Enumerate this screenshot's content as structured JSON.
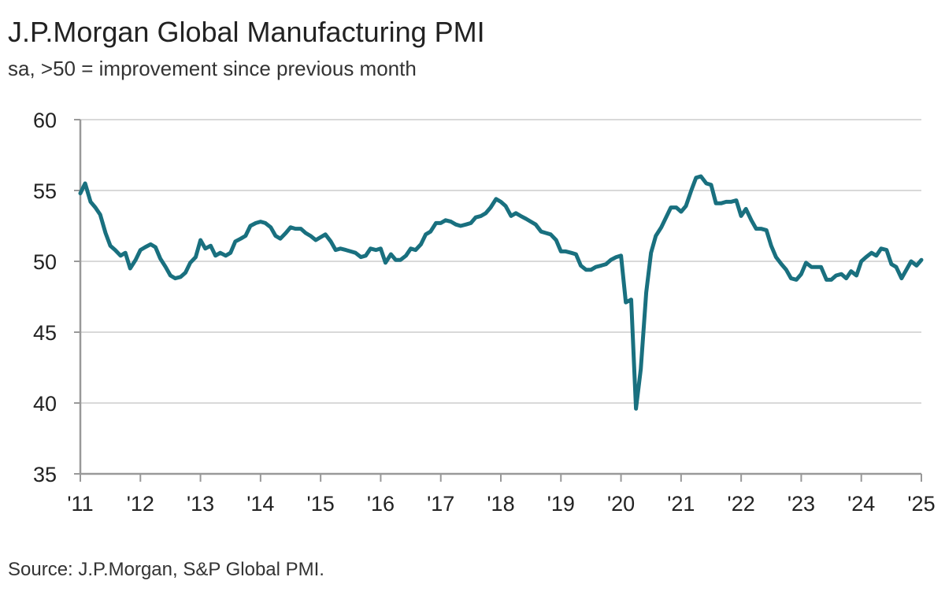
{
  "title": "J.P.Morgan Global Manufacturing PMI",
  "subtitle": "sa, >50 = improvement since previous month",
  "source": "Source: J.P.Morgan, S&P Global PMI.",
  "colors": {
    "line": "#19707f",
    "grid": "#d9d9d9",
    "axis": "#999999"
  },
  "chart_data": {
    "type": "line",
    "title": "J.P.Morgan Global Manufacturing PMI",
    "ylim": [
      35,
      60
    ],
    "y_ticks": [
      "35",
      "40",
      "45",
      "50",
      "55",
      "60"
    ],
    "x_range": [
      2011,
      2025
    ],
    "x_tick_labels": [
      "'11",
      "'12",
      "'13",
      "'14",
      "'15",
      "'16",
      "'17",
      "'18",
      "'19",
      "'20",
      "'21",
      "'22",
      "'23",
      "'24",
      "'25"
    ],
    "grid": "horizontal",
    "series": [
      {
        "x": [
          2011.0,
          2011.08,
          2011.17,
          2011.25,
          2011.33,
          2011.42,
          2011.5,
          2011.58,
          2011.67,
          2011.75,
          2011.83,
          2011.92,
          2012.0,
          2012.08,
          2012.17,
          2012.25,
          2012.33,
          2012.42,
          2012.5,
          2012.58,
          2012.67,
          2012.75,
          2012.83,
          2012.92,
          2013.0,
          2013.08,
          2013.17,
          2013.25,
          2013.33,
          2013.42,
          2013.5,
          2013.58,
          2013.67,
          2013.75,
          2013.83,
          2013.92,
          2014.0,
          2014.08,
          2014.17,
          2014.25,
          2014.33,
          2014.42,
          2014.5,
          2014.58,
          2014.67,
          2014.75,
          2014.83,
          2014.92,
          2015.0,
          2015.08,
          2015.17,
          2015.25,
          2015.33,
          2015.42,
          2015.5,
          2015.58,
          2015.67,
          2015.75,
          2015.83,
          2015.92,
          2016.0,
          2016.08,
          2016.17,
          2016.25,
          2016.33,
          2016.42,
          2016.5,
          2016.58,
          2016.67,
          2016.75,
          2016.83,
          2016.92,
          2017.0,
          2017.08,
          2017.17,
          2017.25,
          2017.33,
          2017.42,
          2017.5,
          2017.58,
          2017.67,
          2017.75,
          2017.83,
          2017.92,
          2018.0,
          2018.08,
          2018.17,
          2018.25,
          2018.33,
          2018.42,
          2018.5,
          2018.58,
          2018.67,
          2018.75,
          2018.83,
          2018.92,
          2019.0,
          2019.08,
          2019.17,
          2019.25,
          2019.33,
          2019.42,
          2019.5,
          2019.58,
          2019.67,
          2019.75,
          2019.83,
          2019.92,
          2020.0,
          2020.08,
          2020.17,
          2020.25,
          2020.33,
          2020.42,
          2020.5,
          2020.58,
          2020.67,
          2020.75,
          2020.83,
          2020.92,
          2021.0,
          2021.08,
          2021.17,
          2021.25,
          2021.33,
          2021.42,
          2021.5,
          2021.58,
          2021.67,
          2021.75,
          2021.83,
          2021.92,
          2022.0,
          2022.08,
          2022.17,
          2022.25,
          2022.33,
          2022.42,
          2022.5,
          2022.58,
          2022.67,
          2022.75,
          2022.83,
          2022.92,
          2023.0,
          2023.08,
          2023.17,
          2023.25,
          2023.33,
          2023.42,
          2023.5,
          2023.58,
          2023.67,
          2023.75,
          2023.83,
          2023.92,
          2024.0,
          2024.08,
          2024.17,
          2024.25,
          2024.33,
          2024.42,
          2024.5,
          2024.58,
          2024.67,
          2024.75,
          2024.83,
          2024.92,
          2025.0
        ],
        "values": [
          54.8,
          55.5,
          54.2,
          53.8,
          53.3,
          52.0,
          51.1,
          50.8,
          50.4,
          50.6,
          49.5,
          50.1,
          50.8,
          51.0,
          51.2,
          51.0,
          50.2,
          49.6,
          49.0,
          48.8,
          48.9,
          49.2,
          49.9,
          50.3,
          51.5,
          50.9,
          51.1,
          50.4,
          50.6,
          50.4,
          50.6,
          51.4,
          51.6,
          51.8,
          52.5,
          52.7,
          52.8,
          52.7,
          52.4,
          51.8,
          51.6,
          52.0,
          52.4,
          52.3,
          52.3,
          52.0,
          51.8,
          51.5,
          51.7,
          51.9,
          51.4,
          50.8,
          50.9,
          50.8,
          50.7,
          50.6,
          50.3,
          50.4,
          50.9,
          50.8,
          50.9,
          49.9,
          50.5,
          50.1,
          50.1,
          50.4,
          50.9,
          50.8,
          51.2,
          51.9,
          52.1,
          52.7,
          52.7,
          52.9,
          52.8,
          52.6,
          52.5,
          52.6,
          52.7,
          53.1,
          53.2,
          53.4,
          53.8,
          54.4,
          54.2,
          53.9,
          53.2,
          53.4,
          53.2,
          53.0,
          52.8,
          52.6,
          52.1,
          52.0,
          51.9,
          51.5,
          50.7,
          50.7,
          50.6,
          50.5,
          49.7,
          49.4,
          49.4,
          49.6,
          49.7,
          49.8,
          50.1,
          50.3,
          50.4,
          47.1,
          47.3,
          39.6,
          42.4,
          47.8,
          50.6,
          51.8,
          52.4,
          53.1,
          53.8,
          53.8,
          53.5,
          53.9,
          55.0,
          55.9,
          56.0,
          55.5,
          55.4,
          54.1,
          54.1,
          54.2,
          54.2,
          54.3,
          53.2,
          53.7,
          52.9,
          52.3,
          52.3,
          52.2,
          51.1,
          50.3,
          49.8,
          49.4,
          48.8,
          48.7,
          49.1,
          49.9,
          49.6,
          49.6,
          49.6,
          48.7,
          48.7,
          49.0,
          49.1,
          48.8,
          49.3,
          49.0,
          50.0,
          50.3,
          50.6,
          50.4,
          50.9,
          50.8,
          49.8,
          49.6,
          48.8,
          49.4,
          50.0,
          49.7,
          50.1
        ]
      }
    ]
  }
}
